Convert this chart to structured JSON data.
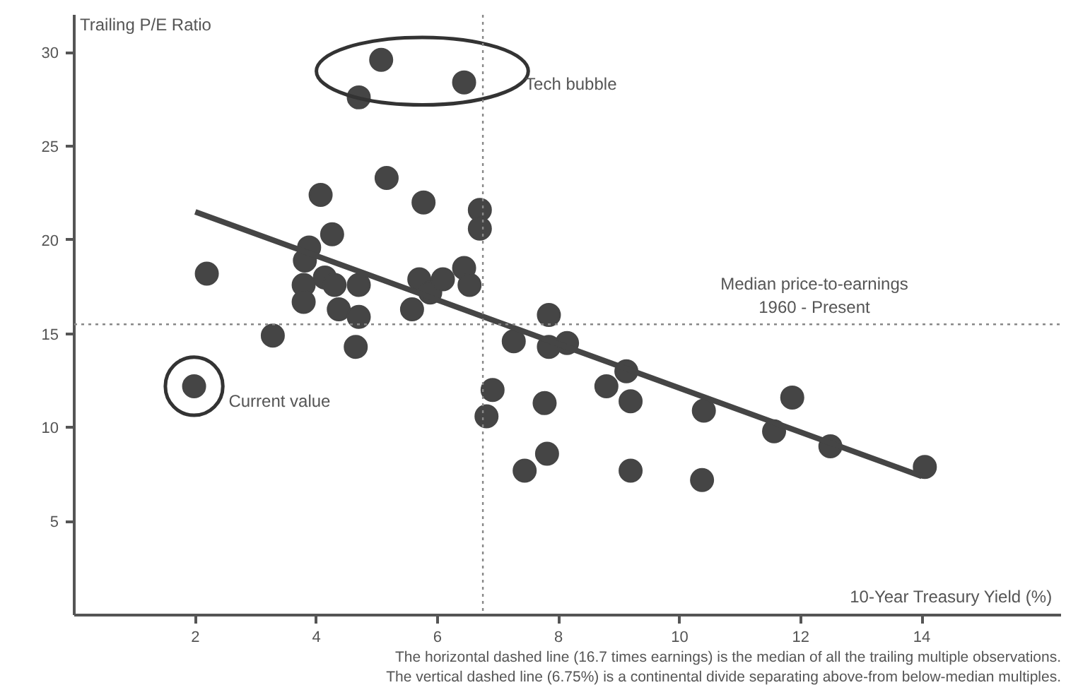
{
  "chart_data": {
    "type": "scatter",
    "ylabel": "Trailing P/E Ratio",
    "xlabel": "10-Year Treasury Yield (%)",
    "xlim": [
      0,
      16.3
    ],
    "ylim": [
      0,
      32
    ],
    "xticks": [
      2,
      4,
      6,
      8,
      10,
      12,
      14
    ],
    "yticks": [
      5,
      10,
      15,
      20,
      25,
      30
    ],
    "grid": false,
    "series": [
      {
        "marker": "circle",
        "color": "#454545",
        "x": [
          5.07,
          6.44,
          4.7,
          5.16,
          4.07,
          5.77,
          6.7,
          6.7,
          4.26,
          2.19,
          3.88,
          3.81,
          4.14,
          3.79,
          4.3,
          4.7,
          5.7,
          5.88,
          6.09,
          6.44,
          6.53,
          3.79,
          4.37,
          4.7,
          5.58,
          3.28,
          4.65,
          7.26,
          7.84,
          7.84,
          8.14,
          1.98,
          6.91,
          6.81,
          7.77,
          7.81,
          7.44,
          9.12,
          8.79,
          9.19,
          10.4,
          11.86,
          11.56,
          12.49,
          14.05,
          9.19,
          10.37
        ],
        "values": [
          29.6,
          28.4,
          27.6,
          23.3,
          22.4,
          22.0,
          21.6,
          20.6,
          20.3,
          18.2,
          19.6,
          18.9,
          18.0,
          17.6,
          17.6,
          17.6,
          17.9,
          17.2,
          17.9,
          18.5,
          17.6,
          16.7,
          16.3,
          15.9,
          16.3,
          14.9,
          14.3,
          14.6,
          16.0,
          14.3,
          14.5,
          12.2,
          12.0,
          10.6,
          11.3,
          8.6,
          7.7,
          13.0,
          12.2,
          11.4,
          10.9,
          11.6,
          9.8,
          9.0,
          7.9,
          7.7,
          7.2
        ]
      },
      {
        "type": "line",
        "color": "#454545",
        "x": [
          2.0,
          14.0
        ],
        "values": [
          21.5,
          7.4
        ]
      }
    ],
    "ref_lines": [
      {
        "axis": "y",
        "value": 15.5,
        "label": "Median price-to-earnings\n1960 - Present",
        "color": "#888888",
        "line_style": "dotted"
      },
      {
        "axis": "x",
        "value": 6.75,
        "color": "#888888",
        "line_style": "dotted"
      }
    ],
    "annotations": [
      "Tech bubble",
      "Current value",
      "The horizontal dashed line (16.7 times earnings) is the median of all the trailing multiple observations.",
      "The vertical dashed line (6.75%) is a continental divide separating above-from below-median multiples."
    ]
  }
}
